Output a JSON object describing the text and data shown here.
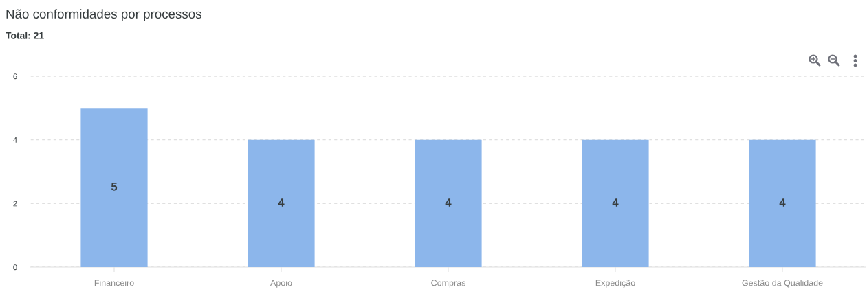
{
  "chart_data": {
    "type": "bar",
    "title": "Não conformidades por processos",
    "subtitle": "Total: 21",
    "categories": [
      "Financeiro",
      "Apoio",
      "Compras",
      "Expedição",
      "Gestão da Qualidade"
    ],
    "values": [
      5,
      4,
      4,
      4,
      4
    ],
    "color": "#8cb6eb",
    "ylim": [
      0,
      6
    ],
    "yticks": [
      0,
      2,
      4,
      6
    ],
    "grid": "y",
    "data_labels": true,
    "legend": false
  }
}
